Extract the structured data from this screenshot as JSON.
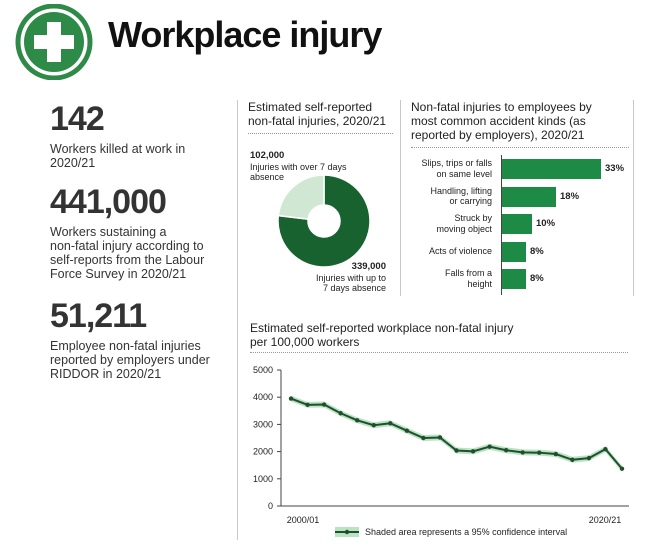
{
  "header": {
    "title": "Workplace injury"
  },
  "stats": [
    {
      "number": "142",
      "lines": [
        "Workers killed at work in",
        "2020/21"
      ]
    },
    {
      "number": "441,000",
      "lines": [
        "Workers sustaining a",
        "non-fatal injury according to",
        "self-reports from the Labour",
        "Force Survey in 2020/21"
      ]
    },
    {
      "number": "51,211",
      "lines": [
        "Employee non-fatal injuries",
        "reported by employers under",
        "RIDDOR in 2020/21"
      ]
    }
  ],
  "chart_data": [
    {
      "type": "pie",
      "title": [
        "Estimated self-reported",
        "non-fatal injuries, 2020/21"
      ],
      "slices": [
        {
          "value": 339000,
          "value_label": "339,000",
          "label": [
            "Injuries with up to",
            "7 days absence"
          ],
          "color": "#17622f"
        },
        {
          "value": 102000,
          "value_label": "102,000",
          "label": [
            "Injuries with over 7 days",
            "absence"
          ],
          "color": "#cfe7d3"
        }
      ]
    },
    {
      "type": "bar",
      "orientation": "horizontal",
      "title": [
        "Non-fatal injuries to employees by",
        "most common accident kinds (as",
        "reported by employers), 2020/21"
      ],
      "categories": [
        [
          "Slips, trips or falls",
          "on same level"
        ],
        [
          "Handling, lifting",
          "or carrying"
        ],
        [
          "Struck by",
          "moving object"
        ],
        [
          "Acts of violence"
        ],
        [
          "Falls from a",
          "height"
        ]
      ],
      "values": [
        33,
        18,
        10,
        8,
        8
      ],
      "value_labels": [
        "33%",
        "18%",
        "10%",
        "8%",
        "8%"
      ],
      "color": "#1d8a46"
    },
    {
      "type": "line",
      "title": [
        "Estimated self-reported workplace non-fatal injury",
        "per 100,000 workers"
      ],
      "x_tick_labels": [
        "2000/01",
        "2020/21"
      ],
      "y_ticks": [
        0,
        1000,
        2000,
        3000,
        4000,
        5000
      ],
      "ylim": [
        0,
        5000
      ],
      "series": [
        {
          "values": [
            3950,
            3720,
            3730,
            3410,
            3150,
            2970,
            3040,
            2770,
            2500,
            2520,
            2040,
            2010,
            2180,
            2050,
            1970,
            1960,
            1910,
            1700,
            1760,
            2090,
            1370
          ]
        }
      ],
      "line_color": "#1f4f2c",
      "band_color": "#b9e3c2",
      "legend": "Shaded area represents a 95% confidence interval"
    }
  ]
}
